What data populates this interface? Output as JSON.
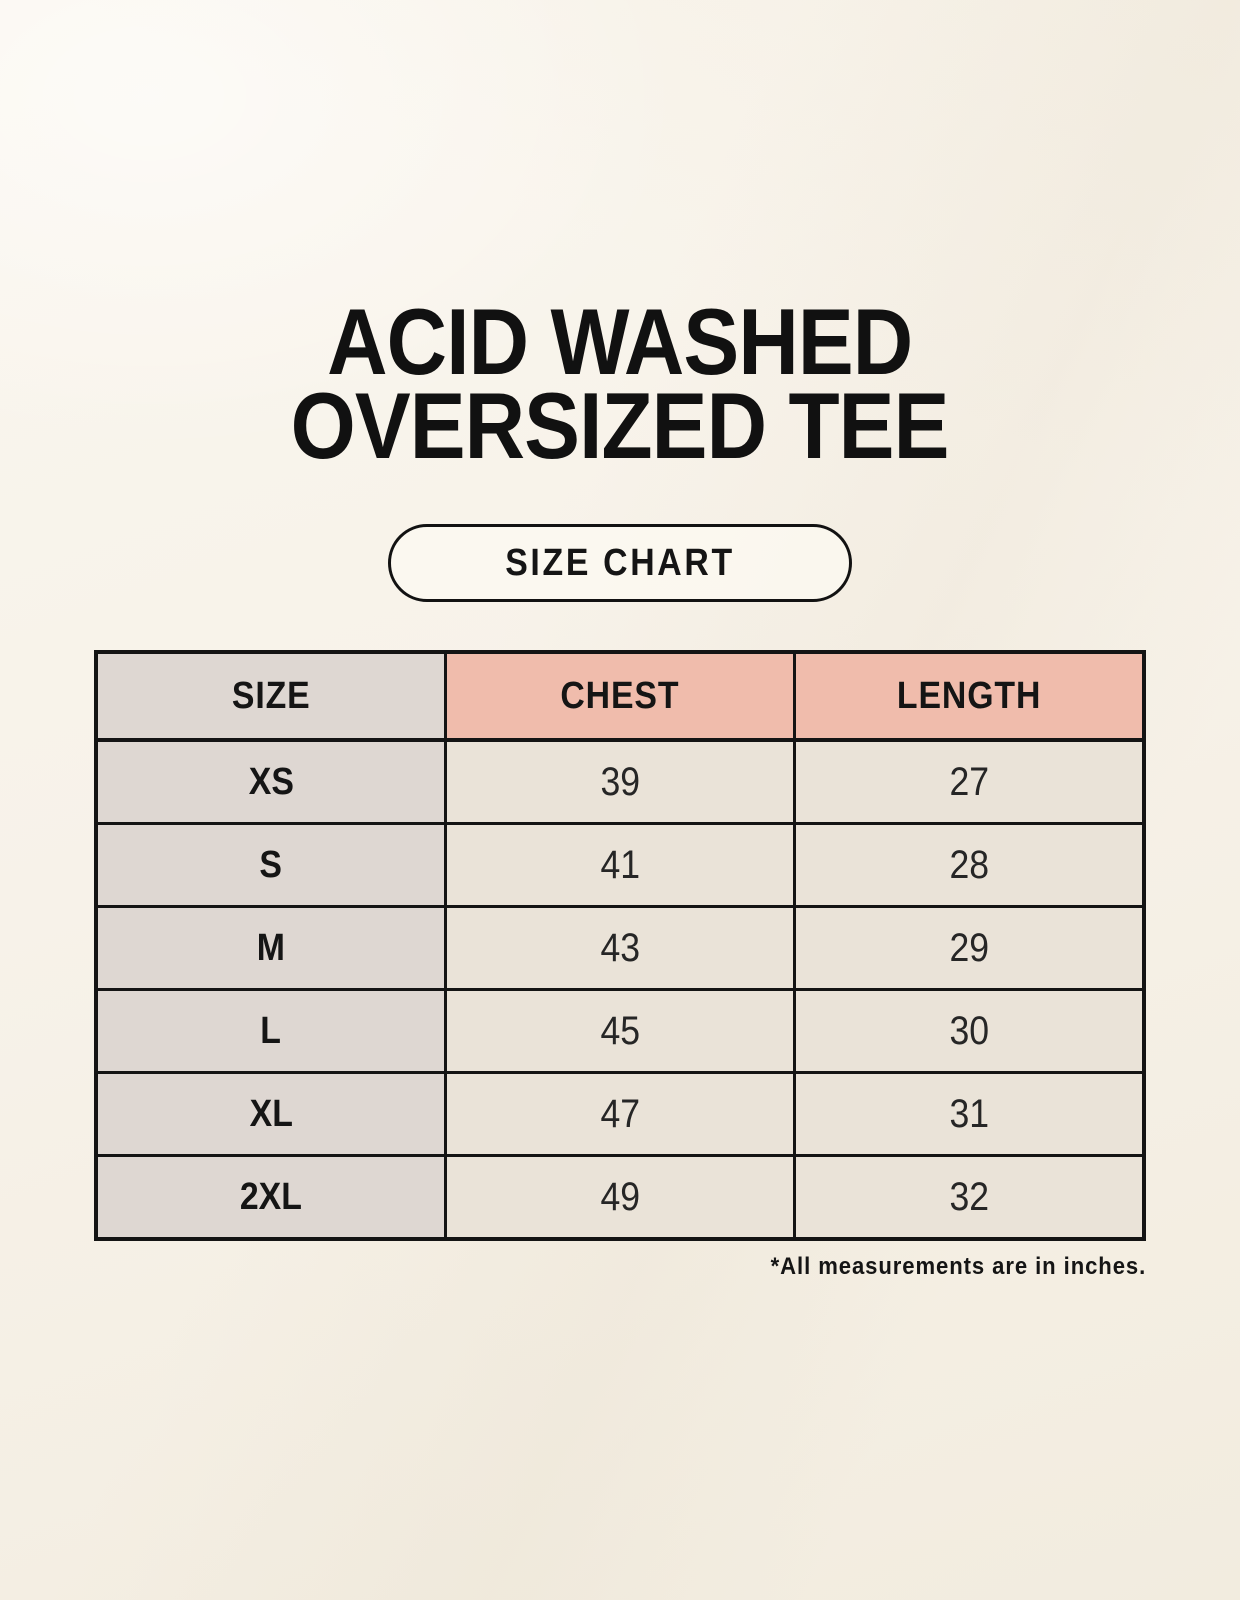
{
  "header": {
    "title_line1": "ACID WASHED",
    "title_line2": "OVERSIZED TEE",
    "button_label": "SIZE CHART"
  },
  "footnote": {
    "text": "*All measurements are in inches."
  },
  "colors": {
    "page_background": "#f6f1e7",
    "size_header_background": "#ded7d2",
    "measurement_header_background": "#f0bcac",
    "size_column_background": "#ded7d2",
    "value_cell_background": "#eae3d8",
    "table_border": "#141414",
    "text_primary": "#151515"
  },
  "chart_data": {
    "type": "table",
    "title": "ACID WASHED OVERSIZED TEE",
    "subtitle": "SIZE CHART",
    "columns": [
      "SIZE",
      "CHEST",
      "LENGTH"
    ],
    "rows": [
      [
        "XS",
        "39",
        "27"
      ],
      [
        "S",
        "41",
        "28"
      ],
      [
        "M",
        "43",
        "29"
      ],
      [
        "L",
        "45",
        "30"
      ],
      [
        "XL",
        "47",
        "31"
      ],
      [
        "2XL",
        "49",
        "32"
      ]
    ],
    "units_note": "*All measurements are in inches.",
    "layout": {
      "grid": "on",
      "header_fill_size_column": "#ded7d2",
      "header_fill_measurement_columns": "#f0bcac",
      "body_fill_size_column": "#ded7d2",
      "body_fill_value_cells": "#eae3d8"
    }
  }
}
